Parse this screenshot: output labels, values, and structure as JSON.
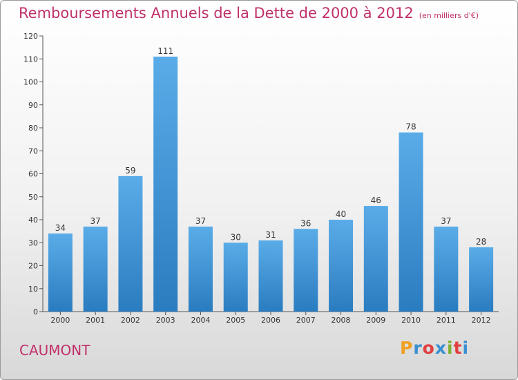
{
  "title": "Remboursements Annuels de la Dette de 2000 à 2012",
  "unit": "(en milliers d'€)",
  "town": "CAUMONT",
  "logo": {
    "letters": [
      "P",
      "r",
      "o",
      "x",
      "i",
      "t",
      "i"
    ],
    "colors": [
      "#f0a020",
      "#3a8fd0",
      "#e04040",
      "#3a8fd0",
      "#80b030",
      "#e04040",
      "#3a8fd0"
    ]
  },
  "colors": {
    "bar_top": "#5aace8",
    "bar_bottom": "#2a7cc0",
    "accent": "#c0306a"
  },
  "chart_data": {
    "type": "bar",
    "title": "Remboursements Annuels de la Dette de 2000 à 2012",
    "ylabel": "(en milliers d'€)",
    "categories": [
      "2000",
      "2001",
      "2002",
      "2003",
      "2004",
      "2005",
      "2006",
      "2007",
      "2008",
      "2009",
      "2010",
      "2011",
      "2012"
    ],
    "values": [
      34,
      37,
      59,
      111,
      37,
      30,
      31,
      36,
      40,
      46,
      78,
      37,
      28
    ],
    "ylim": [
      0,
      120
    ],
    "yticks": [
      0,
      10,
      20,
      30,
      40,
      50,
      60,
      70,
      80,
      90,
      100,
      110,
      120
    ],
    "grid": false,
    "legend": "none"
  }
}
